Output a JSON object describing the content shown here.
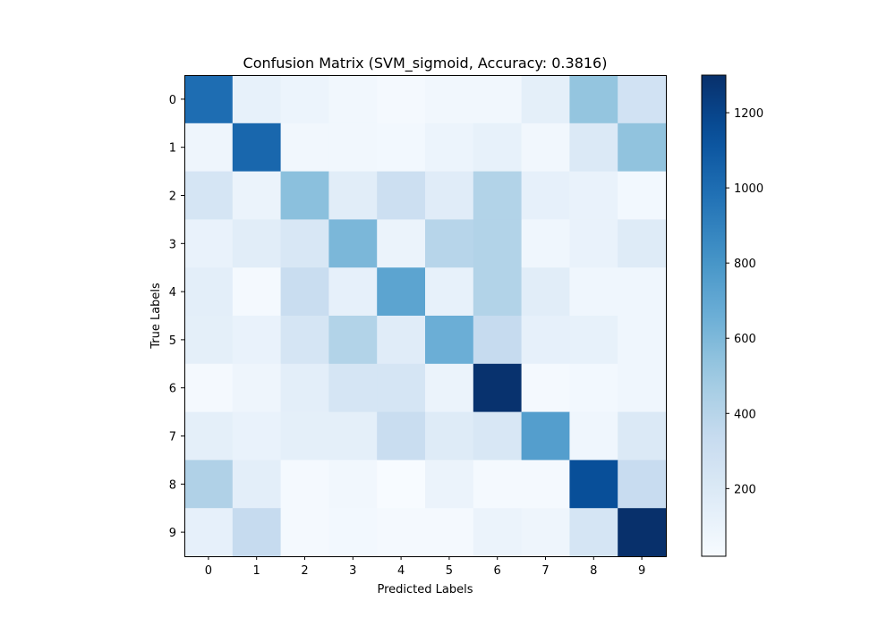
{
  "chart_data": {
    "type": "heatmap",
    "title": "Confusion Matrix (SVM_sigmoid, Accuracy: 0.3816)",
    "xlabel": "Predicted Labels",
    "ylabel": "True Labels",
    "x_categories": [
      "0",
      "1",
      "2",
      "3",
      "4",
      "5",
      "6",
      "7",
      "8",
      "9"
    ],
    "y_categories": [
      "0",
      "1",
      "2",
      "3",
      "4",
      "5",
      "6",
      "7",
      "8",
      "9"
    ],
    "values": [
      [
        1000,
        120,
        90,
        60,
        40,
        60,
        60,
        140,
        530,
        270
      ],
      [
        80,
        1030,
        60,
        60,
        50,
        90,
        120,
        60,
        200,
        540
      ],
      [
        240,
        100,
        560,
        160,
        300,
        170,
        420,
        130,
        110,
        50
      ],
      [
        110,
        160,
        220,
        610,
        100,
        400,
        420,
        70,
        110,
        180
      ],
      [
        150,
        40,
        320,
        130,
        720,
        120,
        420,
        160,
        70,
        70
      ],
      [
        140,
        110,
        240,
        420,
        170,
        660,
        340,
        130,
        120,
        70
      ],
      [
        40,
        80,
        150,
        240,
        240,
        100,
        1290,
        40,
        50,
        70
      ],
      [
        140,
        110,
        140,
        140,
        320,
        180,
        220,
        750,
        70,
        200
      ],
      [
        430,
        150,
        40,
        60,
        20,
        100,
        40,
        40,
        1150,
        330
      ],
      [
        130,
        340,
        40,
        50,
        40,
        40,
        100,
        80,
        240,
        1300
      ]
    ],
    "colorbar": {
      "min": 20,
      "max": 1300,
      "ticks": [
        200,
        400,
        600,
        800,
        1000,
        1200
      ],
      "colormap": "Blues"
    }
  }
}
